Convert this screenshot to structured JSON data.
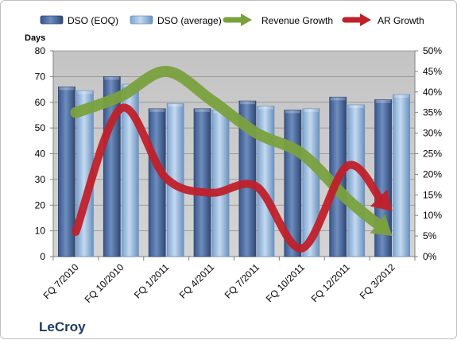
{
  "chart_data": {
    "type": "bar",
    "brand": "LeCroy",
    "ylabel": "Days",
    "ylim": [
      0,
      80
    ],
    "y2lim": [
      0,
      50
    ],
    "y_ticks": [
      "0",
      "10",
      "20",
      "30",
      "40",
      "50",
      "60",
      "70",
      "80"
    ],
    "y2_ticks": [
      "0%",
      "5%",
      "10%",
      "15%",
      "20%",
      "25%",
      "30%",
      "35%",
      "40%",
      "45%",
      "50%"
    ],
    "categories": [
      "FQ 7/2010",
      "FQ 10/2010",
      "FQ 1/2011",
      "FQ 4/2011",
      "FQ 7/2011",
      "FQ 10/2011",
      "FQ 12/2011",
      "FQ 3/2012"
    ],
    "legend_position": "top",
    "grid": true,
    "series": [
      {
        "name": "DSO (EOQ)",
        "type": "bar",
        "axis": "left",
        "color": "#4f6fa1",
        "values": [
          66,
          70,
          57.5,
          57.5,
          60.5,
          57,
          62,
          61
        ]
      },
      {
        "name": "DSO (average)",
        "type": "bar",
        "axis": "left",
        "color": "#8fb4dc",
        "values": [
          64.5,
          67,
          59.5,
          57,
          58.5,
          57.5,
          59,
          63
        ]
      },
      {
        "name": "Revenue Growth",
        "type": "arrow-line",
        "axis": "right",
        "color": "#7aa13e",
        "values": [
          35,
          39,
          45,
          38,
          30,
          25,
          14,
          5
        ]
      },
      {
        "name": "AR Growth",
        "type": "arrow-line",
        "axis": "right",
        "color": "#c0202a",
        "values": [
          6,
          36,
          19,
          15.5,
          17,
          2,
          22,
          11
        ]
      }
    ]
  }
}
